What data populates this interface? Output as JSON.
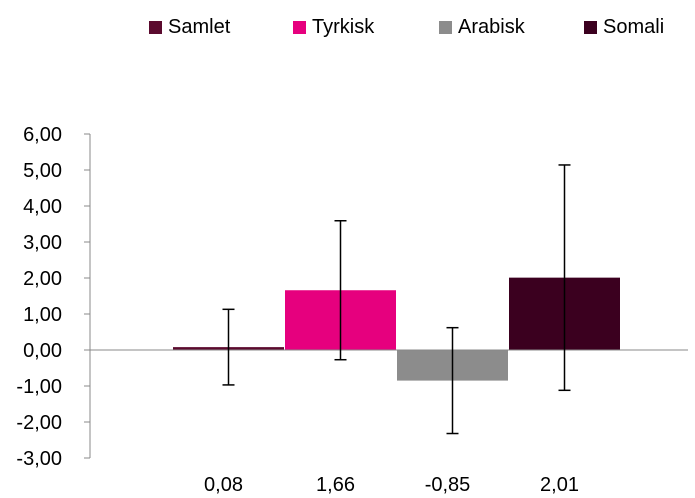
{
  "chart_data": {
    "type": "bar",
    "series": [
      {
        "name": "Samlet",
        "value": 0.08,
        "label": "0,08",
        "err_low": -0.97,
        "err_high": 1.13,
        "color": "#5b0a2e"
      },
      {
        "name": "Tyrkisk",
        "value": 1.66,
        "label": "1,66",
        "err_low": -0.27,
        "err_high": 3.59,
        "color": "#e6007e"
      },
      {
        "name": "Arabisk",
        "value": -0.85,
        "label": "-0,85",
        "err_low": -2.32,
        "err_high": 0.62,
        "color": "#8c8c8c"
      },
      {
        "name": "Somali",
        "value": 2.01,
        "label": "2,01",
        "err_low": -1.12,
        "err_high": 5.14,
        "color": "#3b001f"
      }
    ],
    "y_ticks": [
      "6,00",
      "5,00",
      "4,00",
      "3,00",
      "2,00",
      "1,00",
      "0,00",
      "-1,00",
      "-2,00",
      "-3,00"
    ],
    "ylim": [
      -3,
      6
    ],
    "legend_position": "top"
  }
}
